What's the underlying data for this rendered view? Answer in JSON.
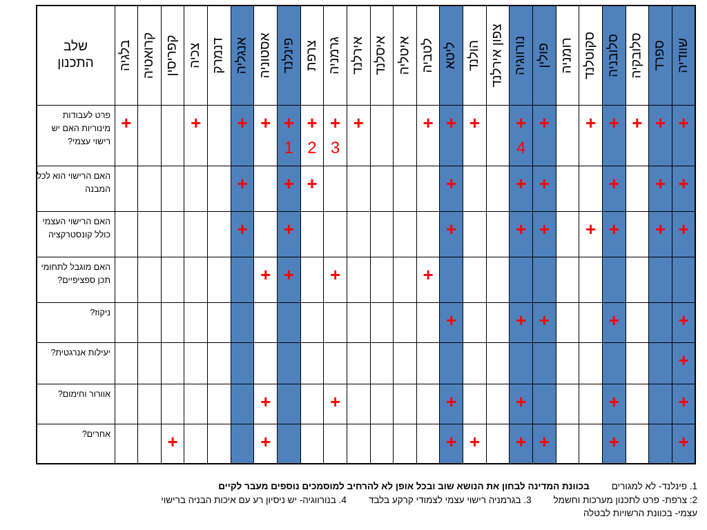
{
  "table": {
    "stage_header": "שלב התכנון",
    "countries": [
      "שוודיה",
      "ספרד",
      "סלובקיה",
      "סלובניה",
      "סקוטלנד",
      "רומניה",
      "פולין",
      "נורווגיה",
      "צפון אירלנד",
      "הולנד",
      "ליטא",
      "לטביה",
      "איטליה",
      "איסלנד",
      "אירלנד",
      "גרמניה",
      "צרפת",
      "פינלנד",
      "אסטוניה",
      "אנגליה",
      "דנמרק",
      "צכיה",
      "קפריסין",
      "קרואטיה",
      "בלגיה"
    ],
    "highlight_color": "#4f81bd",
    "highlighted": [
      "שוודיה",
      "ספרד",
      "סלובניה",
      "פולין",
      "נורווגיה",
      "ליטא",
      "פינלנד",
      "אנגליה"
    ],
    "rows": [
      {
        "label": "פרט לעבודות מינוריות האם יש רישוי עצמי?",
        "marks": [
          "שוודיה",
          "ספרד",
          "סלובקיה",
          "סלובניה",
          "סקוטלנד",
          "פולין",
          "נורווגיה",
          "הולנד",
          "ליטא",
          "לטביה",
          "אירלנד",
          "גרמניה",
          "צרפת",
          "פינלנד",
          "אסטוניה",
          "אנגליה",
          "צכיה",
          "בלגיה"
        ],
        "notes": [
          {
            "country": "פינלנד",
            "text": "1"
          },
          {
            "country": "צרפת",
            "text": "2"
          },
          {
            "country": "גרמניה",
            "text": "3"
          },
          {
            "country": "נורווגיה",
            "text": "4"
          }
        ]
      },
      {
        "label": "האם הרישוי הוא לכל המבנה",
        "marks": [
          "שוודיה",
          "ספרד",
          "סלובניה",
          "פולין",
          "נורווגיה",
          "ליטא",
          "צרפת",
          "פינלנד",
          "אנגליה"
        ],
        "notes": []
      },
      {
        "label": "האם הרישוי העצמי כולל קונסטרקציה",
        "marks": [
          "שוודיה",
          "ספרד",
          "סלובניה",
          "סקוטלנד",
          "פולין",
          "נורווגיה",
          "ליטא",
          "פינלנד",
          "אנגליה"
        ],
        "notes": []
      },
      {
        "label": "האם מוגבל לתחומי תכן ספציפיים?",
        "marks": [
          "לטביה",
          "גרמניה",
          "פינלנד",
          "אסטוניה"
        ],
        "notes": []
      },
      {
        "label": "ניקוז?",
        "marks": [
          "שוודיה",
          "סלובניה",
          "פולין",
          "נורווגיה",
          "ליטא"
        ],
        "notes": []
      },
      {
        "label": "יעילות אנרגטית?",
        "marks": [
          "שוודיה"
        ],
        "notes": []
      },
      {
        "label": "אוורור וחימום?",
        "marks": [
          "שוודיה",
          "סלובניה",
          "נורווגיה",
          "ליטא",
          "גרמניה",
          "אסטוניה"
        ],
        "notes": []
      },
      {
        "label": "אחרים?",
        "marks": [
          "שוודיה",
          "סלובניה",
          "פולין",
          "נורווגיה",
          "הולנד",
          "ליטא",
          "אסטוניה",
          "קפריסין"
        ],
        "notes": []
      }
    ]
  },
  "mark_symbol": "+",
  "footnotes": {
    "line1_note": "1. פינלנד- לא למגורים",
    "line1_bold": "בכוונת המדינה לבחון את הנושא שוב ובכל אופן לא להרחיב  למוסמכים נוספים מעבר  לקיים",
    "line2_a": "2: צרפת- פרט לתכנון מערכות וחשמל",
    "line2_b": "3. בגרמניה רישוי עצמי לצמודי קרקע בלבד",
    "line2_c": "4. בנורווגיה- יש ניסיון רע עם איכות הבניה ברישוי",
    "line3": "עצמי- בכוונת הרשויות לבטלה"
  }
}
